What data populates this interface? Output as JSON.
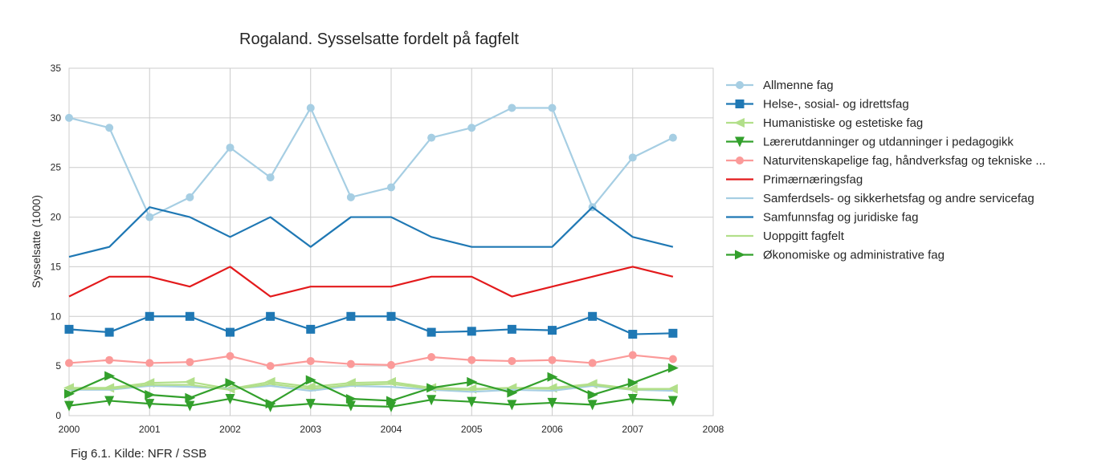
{
  "chart_data": {
    "type": "line",
    "title": "Rogaland. Sysselsatte fordelt på fagfelt",
    "xlabel": "",
    "ylabel": "Sysselsatte (1000)",
    "xlim": [
      2000,
      2008
    ],
    "ylim": [
      0,
      35
    ],
    "x_ticks": [
      "2000",
      "2001",
      "2002",
      "2003",
      "2004",
      "2005",
      "2006",
      "2007",
      "2008"
    ],
    "y_ticks": [
      "0",
      "5",
      "10",
      "15",
      "20",
      "25",
      "30",
      "35"
    ],
    "grid": true,
    "legend_position": "right",
    "x": [
      2000,
      2000.5,
      2001,
      2001.5,
      2002,
      2002.5,
      2003,
      2003.5,
      2004,
      2004.5,
      2005,
      2005.5,
      2006,
      2006.5,
      2007,
      2007.5
    ],
    "series": [
      {
        "name": "Allmenne fag",
        "color": "#a6cee3",
        "marker": "circle",
        "values": [
          30,
          29,
          20,
          22,
          27,
          24,
          31,
          22,
          23,
          28,
          29,
          31,
          31,
          21,
          26,
          28
        ]
      },
      {
        "name": "Helse-, sosial- og idrettsfag",
        "color": "#1f78b4",
        "marker": "square",
        "values": [
          8.7,
          8.4,
          10,
          10,
          8.4,
          10,
          8.7,
          10,
          10,
          8.4,
          8.5,
          8.7,
          8.6,
          10,
          8.2,
          8.3
        ]
      },
      {
        "name": "Humanistiske og estetiske fag",
        "color": "#b2df8a",
        "marker": "triangle-left",
        "values": [
          2.8,
          2.8,
          3.3,
          3.4,
          2.7,
          3.4,
          2.9,
          3.3,
          3.4,
          2.8,
          2.7,
          2.8,
          2.8,
          3.2,
          2.7,
          2.7
        ]
      },
      {
        "name": "Lærerutdanninger og utdanninger i pedagogikk",
        "color": "#33a02c",
        "marker": "triangle-down",
        "values": [
          1.0,
          1.5,
          1.2,
          1.0,
          1.7,
          0.9,
          1.2,
          1.0,
          0.9,
          1.6,
          1.4,
          1.1,
          1.3,
          1.1,
          1.7,
          1.5
        ]
      },
      {
        "name": "Naturvitenskapelige fag, håndverksfag og tekniske ...",
        "color": "#fb9a99",
        "marker": "circle",
        "values": [
          5.3,
          5.6,
          5.3,
          5.4,
          6.0,
          5.0,
          5.5,
          5.2,
          5.1,
          5.9,
          5.6,
          5.5,
          5.6,
          5.3,
          6.1,
          5.7
        ]
      },
      {
        "name": "Primærnæringsfag",
        "color": "#e31a1c",
        "marker": "none",
        "values": [
          12,
          14,
          14,
          13,
          15,
          12,
          13,
          13,
          13,
          14,
          14,
          12,
          13,
          14,
          15,
          14
        ]
      },
      {
        "name": "Samferdsels- og sikkerhetsfag og andre servicefag",
        "color": "#a6cee3",
        "marker": "none",
        "values": [
          2.6,
          2.6,
          3.0,
          2.9,
          2.7,
          3.0,
          2.5,
          3.0,
          2.9,
          2.6,
          2.4,
          2.6,
          2.5,
          3.0,
          2.6,
          2.5
        ]
      },
      {
        "name": "Samfunnsfag og juridiske fag",
        "color": "#1f78b4",
        "marker": "none",
        "values": [
          16,
          17,
          21,
          20,
          18,
          20,
          17,
          20,
          20,
          18,
          17,
          17,
          17,
          21,
          18,
          17
        ]
      },
      {
        "name": "Uoppgitt fagfelt",
        "color": "#b2df8a",
        "marker": "none",
        "values": [
          2.7,
          2.7,
          3.1,
          3.1,
          2.6,
          3.2,
          2.7,
          3.1,
          3.2,
          2.7,
          2.6,
          2.8,
          2.7,
          3.1,
          2.6,
          2.7
        ]
      },
      {
        "name": "Økonomiske og administrative fag",
        "color": "#33a02c",
        "marker": "triangle-right",
        "values": [
          2.2,
          4.0,
          2.1,
          1.8,
          3.3,
          1.2,
          3.6,
          1.7,
          1.5,
          2.8,
          3.4,
          2.3,
          3.9,
          2.1,
          3.3,
          4.8
        ]
      }
    ]
  },
  "caption": "Fig 6.1. Kilde: NFR / SSB"
}
